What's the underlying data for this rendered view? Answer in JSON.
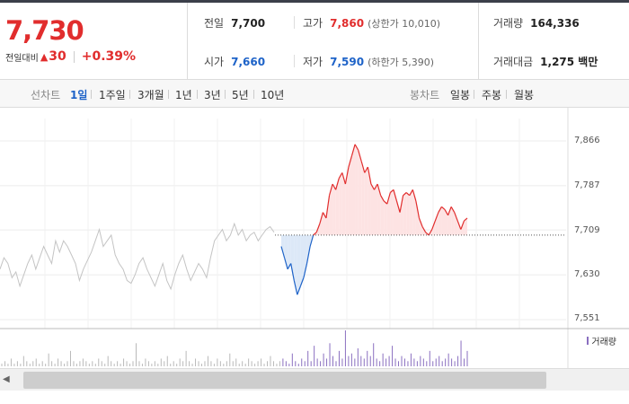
{
  "quote": {
    "price": "7,730",
    "change_label": "전일대비",
    "change_value": "30",
    "change_pct": "+0.39%",
    "prev_close_label": "전일",
    "prev_close": "7,700",
    "open_label": "시가",
    "open": "7,660",
    "high_label": "고가",
    "high": "7,860",
    "upper_limit": "(상한가 10,010)",
    "low_label": "저가",
    "low": "7,590",
    "lower_limit": "(하한가 5,390)",
    "volume_label": "거래량",
    "volume": "164,336",
    "value_label": "거래대금",
    "value": "1,275 백만"
  },
  "line_chart_tabs": {
    "title": "선차트",
    "items": [
      "1일",
      "1주일",
      "3개월",
      "1년",
      "3년",
      "5년",
      "10년"
    ],
    "active": "1일"
  },
  "candle_chart_tabs": {
    "title": "봉차트",
    "items": [
      "일봉",
      "주봉",
      "월봉"
    ]
  },
  "colors": {
    "up": "#e12d2d",
    "down": "#1e63c8",
    "prev_day": "#c4c4c4",
    "volume": "#8a6fc0"
  },
  "icons": {
    "scroll_left": "triangle-left-icon",
    "trend_up": "triangle-up-icon"
  },
  "chart_data": {
    "type": "line",
    "title": "",
    "xlabel": "",
    "ylabel": "",
    "y_ticks": [
      "7,866",
      "7,787",
      "7,709",
      "7,630",
      "7,551"
    ],
    "ylim": [
      7551,
      7866
    ],
    "reference_line": 7700,
    "legend": [
      {
        "name": "거래량"
      }
    ],
    "legend_position": "bottom-right",
    "series": [
      {
        "name": "",
        "role": "previous-day",
        "values": [
          7640,
          7660,
          7650,
          7625,
          7635,
          7610,
          7630,
          7650,
          7665,
          7640,
          7660,
          7680,
          7665,
          7650,
          7690,
          7670,
          7690,
          7680,
          7665,
          7650,
          7620,
          7640,
          7655,
          7670,
          7690,
          7710,
          7680,
          7690,
          7700,
          7665,
          7650,
          7640,
          7620,
          7615,
          7630,
          7650,
          7660,
          7640,
          7625,
          7610,
          7630,
          7650,
          7620,
          7605,
          7630,
          7650,
          7665,
          7640,
          7620,
          7635,
          7650,
          7640,
          7625,
          7660,
          7690,
          7700,
          7710,
          7690,
          7700,
          7720,
          7700,
          7710,
          7690,
          7700,
          7705,
          7690,
          7700,
          7710,
          7715,
          7705
        ]
      },
      {
        "name": "",
        "role": "today",
        "values": [
          7680,
          7660,
          7640,
          7650,
          7620,
          7595,
          7610,
          7625,
          7650,
          7680,
          7700,
          7705,
          7720,
          7740,
          7730,
          7770,
          7790,
          7780,
          7800,
          7810,
          7790,
          7820,
          7840,
          7860,
          7850,
          7830,
          7810,
          7820,
          7790,
          7780,
          7790,
          7770,
          7760,
          7755,
          7775,
          7780,
          7760,
          7740,
          7770,
          7775,
          7770,
          7780,
          7760,
          7730,
          7715,
          7705,
          7700,
          7710,
          7725,
          7740,
          7750,
          7745,
          7735,
          7750,
          7740,
          7725,
          7710,
          7725,
          7730
        ]
      }
    ],
    "volume": [
      1,
      2,
      1,
      3,
      1,
      2,
      1,
      4,
      2,
      1,
      2,
      3,
      1,
      2,
      1,
      5,
      2,
      1,
      3,
      2,
      1,
      2,
      6,
      2,
      1,
      2,
      3,
      2,
      1,
      2,
      1,
      3,
      2,
      1,
      4,
      2,
      1,
      2,
      1,
      3,
      2,
      1,
      2,
      9,
      2,
      1,
      3,
      2,
      1,
      2,
      1,
      3,
      2,
      4,
      1,
      2,
      1,
      3,
      2,
      6,
      2,
      1,
      3,
      2,
      1,
      2,
      4,
      2,
      1,
      3,
      2,
      1,
      2,
      5,
      2,
      3,
      1,
      2,
      1,
      3,
      2,
      1,
      2,
      3,
      1,
      2,
      4,
      2,
      1,
      2,
      3,
      2,
      1,
      5,
      2,
      1,
      3,
      2,
      6,
      2,
      8,
      3,
      2,
      5,
      3,
      9,
      4,
      2,
      6,
      3,
      14,
      4,
      5,
      3,
      7,
      4,
      3,
      6,
      4,
      9,
      3,
      2,
      5,
      3,
      4,
      8,
      3,
      2,
      4,
      3,
      2,
      5,
      3,
      2,
      4,
      3,
      2,
      6,
      2,
      3,
      4,
      2,
      3,
      5,
      3,
      2,
      4,
      10,
      3,
      6
    ]
  }
}
